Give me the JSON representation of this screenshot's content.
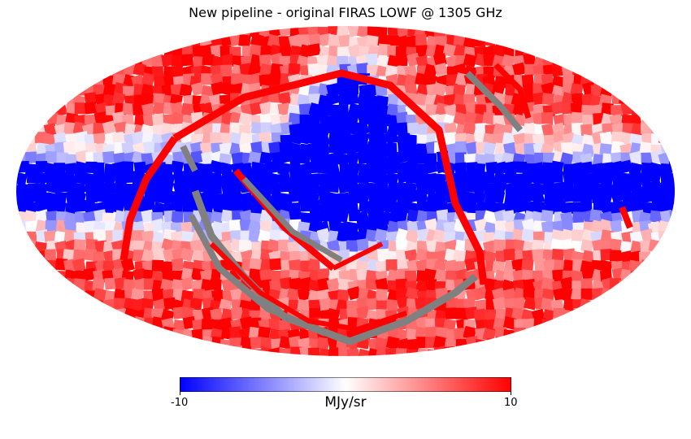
{
  "title": "New pipeline - original FIRAS LOWF @ 1305 GHz",
  "colorbar": {
    "min_label": "-10",
    "max_label": "10",
    "unit": "MJy/sr",
    "colormap": [
      "#0000ff",
      "#ffffff",
      "#ff0000"
    ],
    "min": -10,
    "max": 10
  },
  "colors": {
    "masked": "#808080",
    "background": "#ffffff"
  },
  "map_data": {
    "projection": "mollweide",
    "type": "heatmap",
    "description_values": "sky map with saturated negative band along the galactic plane"
  }
}
